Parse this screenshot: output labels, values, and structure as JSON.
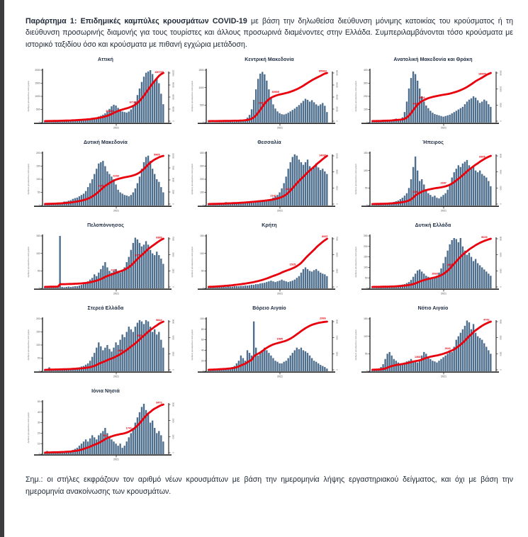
{
  "page": {
    "header_bold": "Παράρτημα 1:  Επιδημικές καμπύλες κρουσμάτων COVID-19",
    "header_rest": " με βάση την δηλωθείσα διεύθυνση μόνιμης κατοικίας του κρούσματος ή τη διεύθυνση προσωρινής διαμονής για τους τουρίστες και άλλους προσωρινά διαμένοντες στην Ελλάδα.  Συμπεριλαμβάνονται τόσο κρούσματα με ιστορικό ταξιδίου όσο και κρούσματα με πιθανή εγχώρια μετάδοση.",
    "footnote": "Σημ.:  οι στήλες εκφράζουν τον αριθμό νέων κρουσμάτων με βάση την ημερομηνία λήψης εργαστηριακού δείγματος, και όχι με βάση την ημερομηνία ανακοίνωσης των κρουσμάτων."
  },
  "colors": {
    "bar": "#4e6e8e",
    "line": "#e8000d",
    "axis": "#2c2c2c",
    "tick_text": "#444444",
    "caption_text": "#666666"
  },
  "axis": {
    "x_year_label": "2021",
    "x_year_fraction": 0.6,
    "y_left_caption": "Αριθμός κρουσμάτων ανά ημέρα",
    "y_right_caption": "Συνολικός αριθμός κρουσμάτων"
  },
  "chart_data": [
    {
      "type": "bar+line",
      "title": "Αττική",
      "left_ticks": [
        0,
        500,
        1000,
        1500,
        2000
      ],
      "right_ticks": [
        0,
        30000,
        60000,
        90000,
        120000
      ],
      "values": [
        30,
        25,
        20,
        20,
        25,
        30,
        30,
        35,
        40,
        45,
        50,
        55,
        60,
        60,
        65,
        70,
        80,
        90,
        100,
        110,
        120,
        140,
        160,
        180,
        200,
        230,
        260,
        300,
        350,
        420,
        520,
        620,
        680,
        650,
        560,
        480,
        420,
        400,
        380,
        420,
        500,
        620,
        800,
        1050,
        1300,
        1550,
        1750,
        1900,
        1950,
        2000,
        1850,
        1600,
        1700,
        1500,
        1100,
        700
      ],
      "annotations": [
        {
          "x": 0.55,
          "v": "36484"
        },
        {
          "x": 0.74,
          "v": "67162"
        },
        {
          "x": 0.965,
          "v": "130765"
        }
      ]
    },
    {
      "type": "bar+line",
      "title": "Κεντρική Μακεδονία",
      "left_ticks": [
        0,
        500,
        1000,
        1500
      ],
      "right_ticks": [
        0,
        20000,
        40000,
        60000,
        80000
      ],
      "values": [
        10,
        8,
        8,
        10,
        10,
        12,
        12,
        15,
        15,
        18,
        20,
        22,
        25,
        30,
        35,
        40,
        60,
        90,
        140,
        220,
        380,
        650,
        950,
        1250,
        1400,
        1450,
        1380,
        1200,
        950,
        700,
        520,
        400,
        320,
        270,
        240,
        230,
        250,
        280,
        320,
        360,
        400,
        450,
        500,
        560,
        620,
        680,
        650,
        600,
        640,
        580,
        520,
        480,
        520,
        560,
        480,
        300
      ],
      "annotations": [
        {
          "x": 0.46,
          "v": "29817"
        },
        {
          "x": 0.56,
          "v": "39905"
        },
        {
          "x": 0.955,
          "v": "85963"
        }
      ]
    },
    {
      "type": "bar+line",
      "title": "Ανατολική Μακεδονία και Θράκη",
      "left_ticks": [
        0,
        100,
        200,
        300,
        400
      ],
      "right_ticks": [
        0,
        5000,
        10000,
        15000
      ],
      "values": [
        5,
        4,
        6,
        5,
        8,
        20,
        10,
        8,
        12,
        15,
        25,
        30,
        20,
        25,
        40,
        80,
        160,
        260,
        340,
        390,
        370,
        320,
        260,
        200,
        160,
        130,
        110,
        90,
        75,
        65,
        60,
        55,
        50,
        45,
        50,
        55,
        60,
        70,
        80,
        90,
        100,
        110,
        120,
        140,
        160,
        175,
        185,
        200,
        190,
        170,
        150,
        160,
        175,
        165,
        140,
        120
      ],
      "annotations": [
        {
          "x": 0.36,
          "v": "4465"
        },
        {
          "x": 0.42,
          "v": "8516"
        },
        {
          "x": 0.93,
          "v": "18995"
        }
      ]
    },
    {
      "type": "bar+line",
      "title": "Δυτική Μακεδονία",
      "left_ticks": [
        0,
        50,
        100,
        150,
        200
      ],
      "right_ticks": [
        0,
        2500,
        5000,
        7500,
        10000
      ],
      "values": [
        5,
        8,
        4,
        5,
        6,
        8,
        10,
        10,
        12,
        15,
        15,
        18,
        20,
        25,
        28,
        30,
        35,
        40,
        45,
        55,
        70,
        85,
        100,
        120,
        140,
        160,
        165,
        170,
        150,
        130,
        120,
        110,
        100,
        80,
        60,
        50,
        45,
        40,
        38,
        35,
        40,
        50,
        65,
        85,
        110,
        140,
        165,
        185,
        190,
        170,
        140,
        120,
        100,
        90,
        70,
        50
      ],
      "annotations": [
        {
          "x": 0.47,
          "v": "2445"
        },
        {
          "x": 0.6,
          "v": "6293"
        },
        {
          "x": 0.945,
          "v": "9905"
        }
      ]
    },
    {
      "type": "bar+line",
      "title": "Θεσσαλία",
      "left_ticks": [
        0,
        100,
        200,
        300,
        400
      ],
      "right_ticks": [
        0,
        4000,
        8000,
        12000
      ],
      "values": [
        5,
        5,
        8,
        6,
        5,
        20,
        8,
        10,
        25,
        12,
        10,
        15,
        12,
        15,
        18,
        20,
        22,
        25,
        28,
        30,
        28,
        25,
        30,
        35,
        32,
        30,
        35,
        40,
        45,
        50,
        60,
        70,
        80,
        100,
        130,
        170,
        220,
        280,
        330,
        370,
        390,
        380,
        350,
        330,
        310,
        330,
        350,
        300,
        280,
        300,
        320,
        290,
        270,
        280,
        260,
        240
      ],
      "annotations": [
        {
          "x": 0.55,
          "v": "2141"
        },
        {
          "x": 0.67,
          "v": "4219"
        },
        {
          "x": 0.965,
          "v": "14081"
        }
      ]
    },
    {
      "type": "bar+line",
      "title": "Ήπειρος",
      "left_ticks": [
        0,
        50,
        100,
        150
      ],
      "right_ticks": [
        0,
        2000,
        4000,
        6000
      ],
      "values": [
        2,
        2,
        3,
        3,
        4,
        5,
        5,
        6,
        8,
        8,
        10,
        12,
        14,
        18,
        22,
        28,
        35,
        50,
        75,
        110,
        140,
        100,
        70,
        75,
        60,
        45,
        35,
        30,
        25,
        28,
        22,
        20,
        25,
        30,
        35,
        45,
        60,
        80,
        95,
        105,
        115,
        110,
        120,
        125,
        130,
        115,
        105,
        110,
        100,
        95,
        100,
        90,
        85,
        80,
        70,
        55
      ],
      "annotations": [
        {
          "x": 0.37,
          "v": "1343"
        },
        {
          "x": 0.6,
          "v": "2697"
        },
        {
          "x": 0.93,
          "v": "6905"
        }
      ]
    },
    {
      "type": "bar+line",
      "title": "Πελοπόννησος",
      "left_ticks": [
        0,
        50,
        100,
        150
      ],
      "right_ticks": [
        0,
        2500,
        5000,
        7500
      ],
      "values": [
        3,
        2,
        3,
        4,
        3,
        4,
        3,
        150,
        4,
        3,
        4,
        5,
        4,
        5,
        6,
        6,
        8,
        10,
        12,
        15,
        20,
        25,
        30,
        40,
        35,
        45,
        55,
        65,
        75,
        60,
        50,
        45,
        50,
        55,
        50,
        45,
        50,
        60,
        75,
        90,
        110,
        130,
        145,
        140,
        130,
        120,
        125,
        135,
        125,
        110,
        100,
        95,
        105,
        95,
        85,
        70
      ],
      "annotations": [
        {
          "x": 0.58,
          "v": "2316"
        },
        {
          "x": 0.78,
          "v": "4779"
        },
        {
          "x": 0.965,
          "v": "9389"
        }
      ]
    },
    {
      "type": "bar+line",
      "title": "Κρήτη",
      "left_ticks": [
        0,
        50,
        100,
        150
      ],
      "right_ticks": [
        0,
        2500,
        5000,
        7500
      ],
      "values": [
        2,
        2,
        2,
        3,
        3,
        3,
        4,
        4,
        4,
        5,
        5,
        5,
        6,
        6,
        6,
        7,
        7,
        8,
        8,
        9,
        10,
        10,
        12,
        12,
        14,
        15,
        16,
        18,
        20,
        22,
        20,
        18,
        20,
        22,
        25,
        22,
        20,
        18,
        20,
        22,
        25,
        30,
        35,
        45,
        55,
        60,
        55,
        50,
        48,
        52,
        55,
        50,
        45,
        42,
        40,
        35
      ],
      "annotations": [
        {
          "x": 0.7,
          "v": "1525"
        },
        {
          "x": 0.975,
          "v": "8937"
        }
      ]
    },
    {
      "type": "bar+line",
      "title": "Δυτική Ελλάδα",
      "left_ticks": [
        0,
        50,
        100,
        150,
        200,
        250
      ],
      "right_ticks": [
        0,
        3000,
        6000,
        9000
      ],
      "values": [
        2,
        2,
        3,
        3,
        4,
        4,
        5,
        5,
        6,
        8,
        10,
        12,
        14,
        16,
        18,
        20,
        25,
        30,
        40,
        55,
        70,
        85,
        90,
        80,
        70,
        60,
        55,
        50,
        45,
        50,
        60,
        75,
        95,
        120,
        150,
        180,
        210,
        230,
        240,
        235,
        220,
        240,
        200,
        180,
        160,
        170,
        150,
        130,
        140,
        120,
        110,
        100,
        90,
        80,
        70,
        60
      ],
      "annotations": [
        {
          "x": 0.52,
          "v": "2068"
        },
        {
          "x": 0.66,
          "v": "3852"
        },
        {
          "x": 0.95,
          "v": "9025"
        }
      ]
    },
    {
      "type": "bar+line",
      "title": "Στερεά Ελλάδα",
      "left_ticks": [
        0,
        50,
        100,
        150,
        200
      ],
      "right_ticks": [
        0,
        3000,
        6000,
        9000
      ],
      "values": [
        3,
        2,
        15,
        4,
        3,
        5,
        4,
        6,
        5,
        8,
        6,
        8,
        10,
        10,
        12,
        14,
        15,
        18,
        20,
        25,
        30,
        40,
        55,
        70,
        90,
        110,
        95,
        80,
        90,
        100,
        85,
        75,
        90,
        110,
        100,
        120,
        140,
        130,
        150,
        170,
        160,
        150,
        170,
        185,
        195,
        190,
        180,
        195,
        190,
        170,
        150,
        160,
        140,
        150,
        120,
        90
      ],
      "annotations": [
        {
          "x": 0.64,
          "v": "2859"
        },
        {
          "x": 0.8,
          "v": "5566"
        },
        {
          "x": 0.965,
          "v": "9844"
        }
      ]
    },
    {
      "type": "bar+line",
      "title": "Βόρειο Αιγαίο",
      "left_ticks": [
        0,
        20,
        40,
        60,
        80,
        100
      ],
      "right_ticks": [
        0,
        1000,
        2000,
        3000
      ],
      "values": [
        2,
        2,
        2,
        3,
        3,
        3,
        4,
        4,
        5,
        5,
        6,
        8,
        10,
        15,
        20,
        30,
        25,
        20,
        40,
        35,
        30,
        95,
        45,
        30,
        35,
        40,
        45,
        40,
        35,
        30,
        25,
        20,
        18,
        15,
        15,
        18,
        20,
        25,
        30,
        35,
        40,
        45,
        42,
        45,
        40,
        38,
        35,
        30,
        25,
        20,
        18,
        15,
        12,
        10,
        8,
        5
      ],
      "annotations": [
        {
          "x": 0.6,
          "v": "1565"
        },
        {
          "x": 0.96,
          "v": "2999"
        }
      ]
    },
    {
      "type": "bar+line",
      "title": "Νότιο Αιγαίο",
      "left_ticks": [
        0,
        50,
        100,
        150
      ],
      "right_ticks": [
        0,
        1500,
        3000,
        4500
      ],
      "values": [
        3,
        4,
        5,
        8,
        12,
        20,
        35,
        50,
        55,
        45,
        35,
        30,
        25,
        22,
        20,
        25,
        28,
        30,
        35,
        30,
        28,
        25,
        30,
        45,
        55,
        50,
        40,
        35,
        30,
        28,
        25,
        30,
        35,
        40,
        45,
        50,
        60,
        55,
        70,
        90,
        100,
        110,
        120,
        130,
        145,
        140,
        120,
        135,
        110,
        100,
        95,
        90,
        80,
        70,
        60,
        50
      ],
      "annotations": [
        {
          "x": 0.38,
          "v": "1368"
        },
        {
          "x": 0.64,
          "v": "2641"
        },
        {
          "x": 0.955,
          "v": "4742"
        }
      ]
    },
    {
      "type": "bar+line",
      "title": "Ιόνια Νησιά",
      "left_ticks": [
        0,
        10,
        20,
        30,
        40,
        50
      ],
      "right_ticks": [
        0,
        1000,
        2000,
        3000
      ],
      "values": [
        1,
        3,
        1,
        1,
        1,
        1,
        1,
        1,
        2,
        2,
        2,
        3,
        3,
        4,
        5,
        6,
        8,
        10,
        12,
        14,
        12,
        15,
        18,
        16,
        14,
        18,
        20,
        22,
        25,
        20,
        16,
        14,
        12,
        10,
        8,
        10,
        6,
        8,
        12,
        16,
        20,
        25,
        30,
        35,
        40,
        45,
        48,
        42,
        38,
        30,
        32,
        25,
        20,
        22,
        18,
        12
      ],
      "annotations": [
        {
          "x": 0.5,
          "v": "932"
        },
        {
          "x": 0.7,
          "v": "1741"
        },
        {
          "x": 0.955,
          "v": "3473"
        }
      ]
    }
  ]
}
